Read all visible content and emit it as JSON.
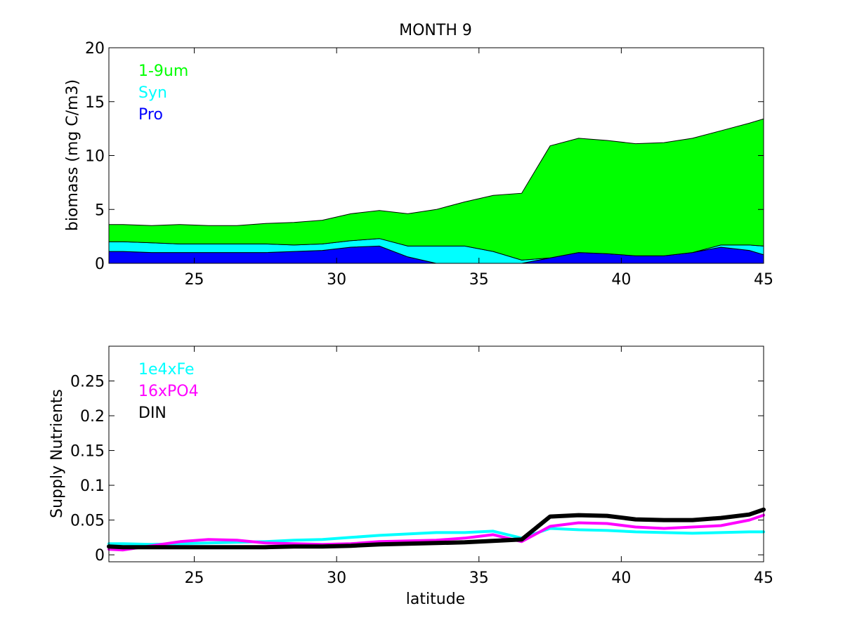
{
  "title": "MONTH 9",
  "colors": {
    "large": "#00ff00",
    "syn": "#00ffff",
    "pro": "#0000ff",
    "din": "#000000",
    "po4": "#ff00ff",
    "fe": "#00ffff"
  },
  "chart_data": [
    {
      "type": "area",
      "stacked": true,
      "title": "MONTH 9",
      "xlabel": "",
      "ylabel": "biomass (mg C/m3)",
      "xlim": [
        22,
        45
      ],
      "ylim": [
        0,
        20
      ],
      "xticks": [
        25,
        30,
        35,
        40,
        45
      ],
      "yticks": [
        0,
        5,
        10,
        15,
        20
      ],
      "grid": false,
      "legend_position": "top-left",
      "x": [
        22,
        22.5,
        23.5,
        24.5,
        25.5,
        26.5,
        27.5,
        28.5,
        29.5,
        30.5,
        31.5,
        32.5,
        33.5,
        34.5,
        35.5,
        36.5,
        37.5,
        38.5,
        39.5,
        40.5,
        41.5,
        42.5,
        43.5,
        44.5,
        45
      ],
      "series": [
        {
          "name": "Pro",
          "color_key": "pro",
          "values": [
            1.1,
            1.1,
            1.0,
            1.0,
            1.0,
            1.0,
            1.0,
            1.1,
            1.2,
            1.5,
            1.6,
            0.6,
            0.0,
            0.0,
            0.0,
            0.0,
            0.5,
            1.0,
            0.9,
            0.7,
            0.7,
            1.0,
            1.5,
            1.2,
            0.8
          ]
        },
        {
          "name": "Syn",
          "color_key": "syn",
          "values": [
            0.9,
            0.9,
            0.9,
            0.8,
            0.8,
            0.8,
            0.8,
            0.6,
            0.6,
            0.6,
            0.7,
            1.0,
            1.6,
            1.6,
            1.1,
            0.3,
            0.0,
            0.0,
            0.0,
            0.0,
            0.0,
            0.0,
            0.2,
            0.5,
            0.8
          ]
        },
        {
          "name": "1-9um",
          "color_key": "large",
          "values": [
            1.6,
            1.6,
            1.6,
            1.8,
            1.7,
            1.7,
            1.9,
            2.1,
            2.2,
            2.5,
            2.6,
            3.0,
            3.4,
            4.1,
            5.2,
            6.2,
            10.4,
            10.6,
            10.5,
            10.4,
            10.5,
            10.6,
            10.6,
            11.3,
            11.8
          ]
        }
      ]
    },
    {
      "type": "line",
      "title": "",
      "xlabel": "latitude",
      "ylabel": "Supply Nutrients",
      "xlim": [
        22,
        45
      ],
      "ylim": [
        -0.01,
        0.3
      ],
      "xticks": [
        25,
        30,
        35,
        40,
        45
      ],
      "yticks": [
        0,
        0.05,
        0.1,
        0.15,
        0.2,
        0.25
      ],
      "ytick_labels": [
        "0",
        "0.05",
        "0.1",
        "0.15",
        "0.2",
        "0.25"
      ],
      "grid": false,
      "legend_position": "top-left",
      "x": [
        22,
        22.5,
        23.5,
        24.5,
        25.5,
        26.5,
        27.5,
        28.5,
        29.5,
        30.5,
        31.5,
        32.5,
        33.5,
        34.5,
        35.5,
        36.5,
        37.5,
        38.5,
        39.5,
        40.5,
        41.5,
        42.5,
        43.5,
        44.5,
        45
      ],
      "series": [
        {
          "name": "DIN",
          "color_key": "din",
          "width": 6,
          "values": [
            0.012,
            0.011,
            0.011,
            0.011,
            0.011,
            0.011,
            0.011,
            0.012,
            0.012,
            0.013,
            0.015,
            0.016,
            0.017,
            0.018,
            0.02,
            0.022,
            0.055,
            0.057,
            0.056,
            0.051,
            0.05,
            0.05,
            0.053,
            0.058,
            0.065
          ]
        },
        {
          "name": "16xPO4",
          "color_key": "po4",
          "width": 4,
          "values": [
            0.008,
            0.007,
            0.013,
            0.019,
            0.022,
            0.021,
            0.017,
            0.016,
            0.015,
            0.016,
            0.019,
            0.02,
            0.021,
            0.024,
            0.029,
            0.019,
            0.041,
            0.046,
            0.045,
            0.04,
            0.038,
            0.04,
            0.042,
            0.05,
            0.057
          ]
        },
        {
          "name": "1e4xFe",
          "color_key": "fe",
          "width": 4,
          "values": [
            0.016,
            0.016,
            0.015,
            0.016,
            0.017,
            0.018,
            0.019,
            0.021,
            0.022,
            0.025,
            0.028,
            0.03,
            0.032,
            0.032,
            0.034,
            0.024,
            0.038,
            0.036,
            0.035,
            0.033,
            0.032,
            0.031,
            0.032,
            0.033,
            0.033
          ]
        }
      ]
    }
  ]
}
